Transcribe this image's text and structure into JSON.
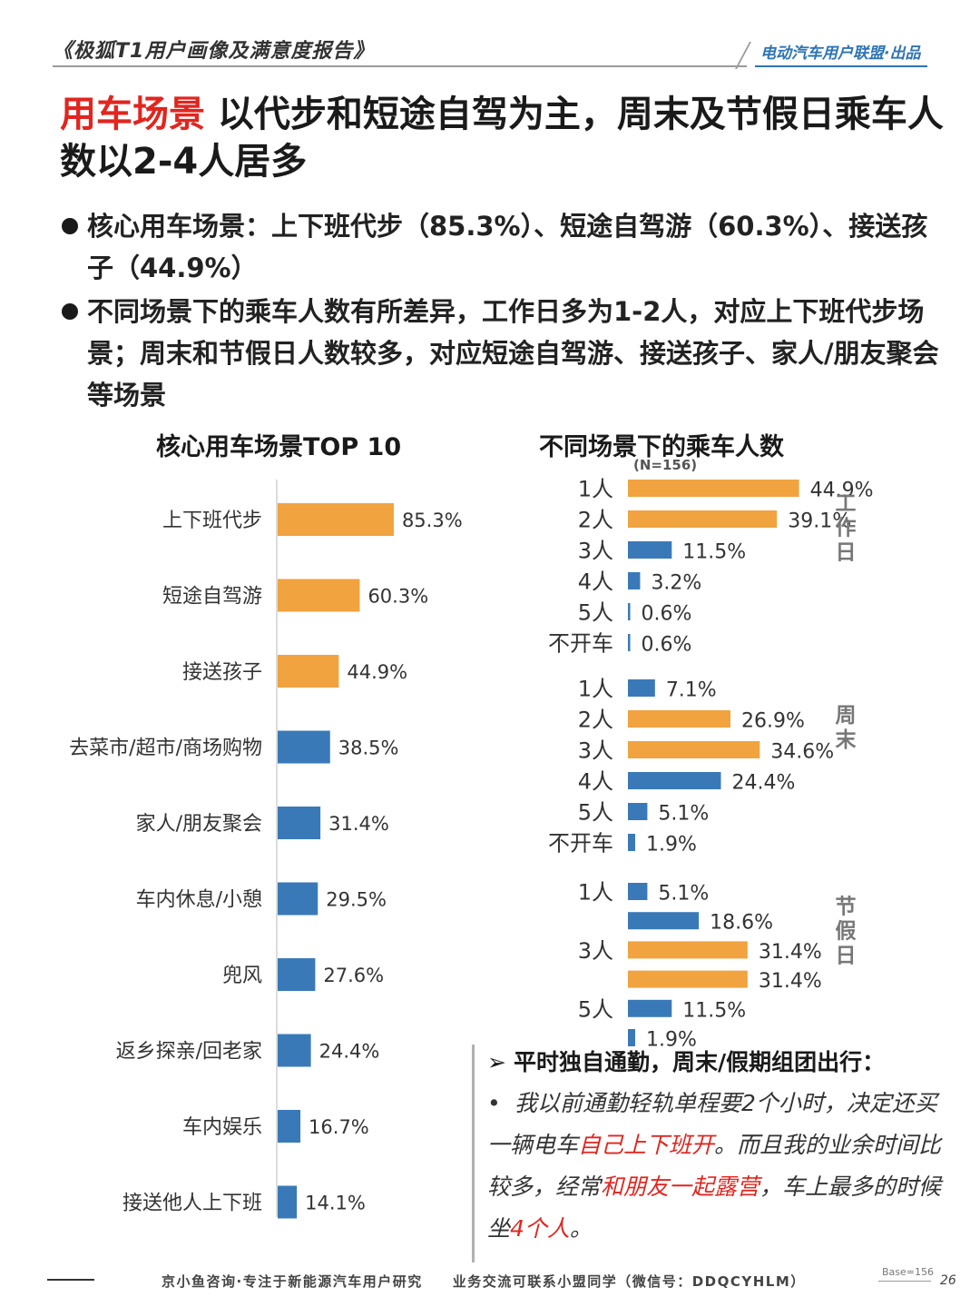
{
  "header": {
    "report_title": "《极狐T1用户画像及满意度报告》",
    "publisher": "电动汽车用户联盟·出品"
  },
  "title": {
    "accent": "用车场景",
    "rest": " 以代步和短途自驾为主，周末及节假日乘车人数以2-4人居多"
  },
  "bullets": [
    "核心用车场景：上下班代步（85.3%）、短途自驾游（60.3%）、接送孩子（44.9%）",
    "不同场景下的乘车人数有所差异，工作日多为1-2人，对应上下班代步场景；周末和节假日人数较多，对应短途自驾游、接送孩子、家人/朋友聚会等场景"
  ],
  "colors": {
    "orange": "#f0a33f",
    "blue": "#3a79b8",
    "red": "#e0261f"
  },
  "chart_data": [
    {
      "type": "bar",
      "orientation": "horizontal",
      "title": "核心用车场景TOP 10",
      "categories": [
        "上下班代步",
        "短途自驾游",
        "接送孩子",
        "去菜市/超市/商场购物",
        "家人/朋友聚会",
        "车内休息/小憩",
        "兜风",
        "返乡探亲/回老家",
        "车内娱乐",
        "接送他人上下班"
      ],
      "values": [
        85.3,
        60.3,
        44.9,
        38.5,
        31.4,
        29.5,
        27.6,
        24.4,
        16.7,
        14.1
      ],
      "labels": [
        "85.3%",
        "60.3%",
        "44.9%",
        "38.5%",
        "31.4%",
        "29.5%",
        "27.6%",
        "24.4%",
        "16.7%",
        "14.1%"
      ],
      "highlight": [
        true,
        true,
        true,
        false,
        false,
        false,
        false,
        false,
        false,
        false
      ],
      "xlim": [
        0,
        100
      ]
    },
    {
      "type": "bar",
      "orientation": "horizontal",
      "title": "不同场景下的乘车人数",
      "subtitle": "(N=156)",
      "xlim": [
        0,
        50
      ],
      "groups": [
        {
          "name": "工作日",
          "categories": [
            "1人",
            "2人",
            "3人",
            "4人",
            "5人",
            "不开车"
          ],
          "values": [
            44.9,
            39.1,
            11.5,
            3.2,
            0.6,
            0.6
          ],
          "labels": [
            "44.9%",
            "39.1%",
            "11.5%",
            "3.2%",
            "0.6%",
            "0.6%"
          ],
          "highlight": [
            true,
            true,
            false,
            false,
            false,
            false
          ]
        },
        {
          "name": "周末",
          "categories": [
            "1人",
            "2人",
            "3人",
            "4人",
            "5人",
            "不开车"
          ],
          "values": [
            7.1,
            26.9,
            34.6,
            24.4,
            5.1,
            1.9
          ],
          "labels": [
            "7.1%",
            "26.9%",
            "34.6%",
            "24.4%",
            "5.1%",
            "1.9%"
          ],
          "highlight": [
            false,
            true,
            true,
            false,
            false,
            false
          ]
        },
        {
          "name": "节假日",
          "categories": [
            "1人",
            "",
            "3人",
            "",
            "5人",
            ""
          ],
          "values": [
            5.1,
            18.6,
            31.4,
            31.4,
            11.5,
            1.9
          ],
          "labels": [
            "5.1%",
            "18.6%",
            "31.4%",
            "31.4%",
            "11.5%",
            "1.9%"
          ],
          "highlight": [
            false,
            false,
            true,
            true,
            false,
            false
          ]
        }
      ]
    }
  ],
  "quote": {
    "heading": "平时独自通勤，周末/假期组团出行：",
    "arrow": "➢",
    "bullet": "•",
    "segments": [
      {
        "text": "我以前通勤轻轨单程要2个小时，决定还买一辆电车",
        "hl": false
      },
      {
        "text": "自己上下班开",
        "hl": true
      },
      {
        "text": "。而且我的业余时间比较多，经常",
        "hl": false
      },
      {
        "text": "和朋友一起露营",
        "hl": true
      },
      {
        "text": "，车上最多的时候坐",
        "hl": false
      },
      {
        "text": "4个人",
        "hl": true
      },
      {
        "text": "。",
        "hl": false
      }
    ]
  },
  "footer": {
    "text": "京小鱼咨询·专注于新能源汽车用户研究　　业务交流可联系小盟同学（微信号：DDQCYHLM）",
    "base": "Base=156",
    "page": "26"
  }
}
